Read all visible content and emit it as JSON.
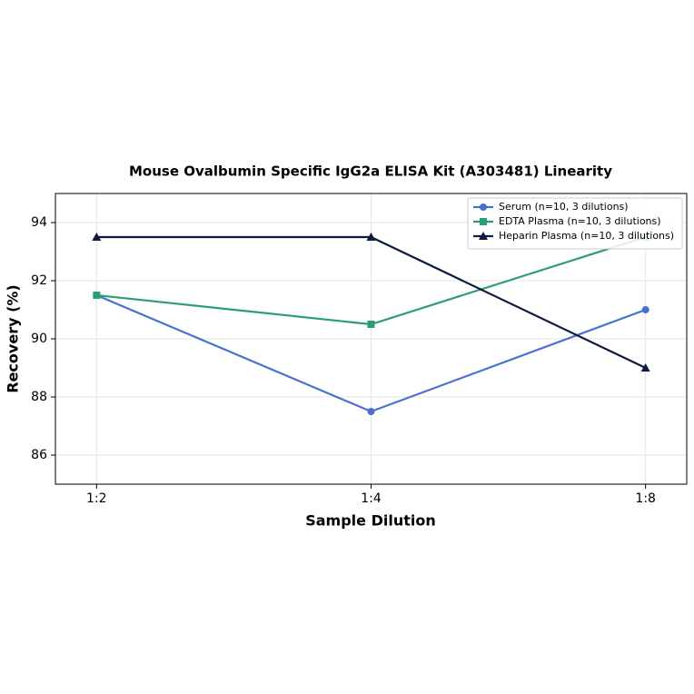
{
  "chart_data": {
    "type": "line",
    "title": "Mouse Ovalbumin Specific IgG2a ELISA Kit (A303481) Linearity",
    "x_label": "Sample Dilution",
    "y_label": "Recovery (%)",
    "categories": [
      "1:2",
      "1:4",
      "1:8"
    ],
    "series": [
      {
        "name": "Serum (n=10, 3 dilutions)",
        "color": "#4a6fd4",
        "marker": "circle",
        "values": [
          91.5,
          87.5,
          91
        ]
      },
      {
        "name": "EDTA Plasma (n=10, 3 dilutions)",
        "color": "#2a9d78",
        "marker": "square",
        "values": [
          91.5,
          90.5,
          93.5
        ]
      },
      {
        "name": "Heparin Plasma (n=10, 3 dilutions)",
        "color": "#0d1b3e",
        "marker": "triangle",
        "values": [
          93.5,
          93.5,
          89
        ]
      }
    ],
    "ylim": [
      85,
      95
    ],
    "yticks": [
      86,
      88,
      90,
      92,
      94
    ],
    "grid": true,
    "legend": "upper right"
  }
}
